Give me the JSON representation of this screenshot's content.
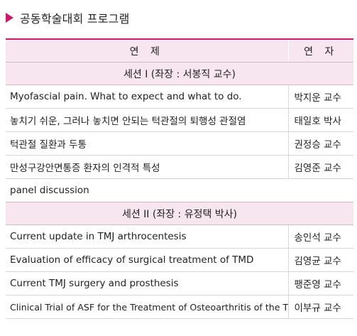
{
  "title": "공동학술대회 프로그램",
  "colors": {
    "accent": "#c71c6a",
    "header_bg": "#f7e6ef"
  },
  "table": {
    "headers": {
      "topic": "연 제",
      "speaker": "연 자"
    },
    "session1": "세션 I (좌장 : 서봉직 교수)",
    "session1_rows": [
      {
        "topic": "Myofascial pain. What to expect and what to do.",
        "speaker": "박지운 교수"
      },
      {
        "topic": "놓치기 쉬운, 그러나 놓치면 안되는 턱관절의 퇴행성 관절염",
        "speaker": "태일호 박사"
      },
      {
        "topic": "턱관절 질환과 두통",
        "speaker": "권정승 교수"
      },
      {
        "topic": "만성구강안면통증 환자의 인격적 특성",
        "speaker": "김영준 교수"
      },
      {
        "topic": "panel discussion",
        "speaker": ""
      }
    ],
    "session2": "세션 II (좌장 : 유정택 박사)",
    "session2_rows": [
      {
        "topic": "Current update in TMJ arthrocentesis",
        "speaker": "송인석 교수"
      },
      {
        "topic": "Evaluation of efficacy of surgical treatment of TMD",
        "speaker": "김영균 교수"
      },
      {
        "topic": "Current TMJ surgery and prosthesis",
        "speaker": "팽준영 교수"
      },
      {
        "topic": "Clinical Trial of ASF for the Treatment of Osteoarthritis of the TMJ",
        "speaker": "이부규 교수"
      }
    ]
  }
}
